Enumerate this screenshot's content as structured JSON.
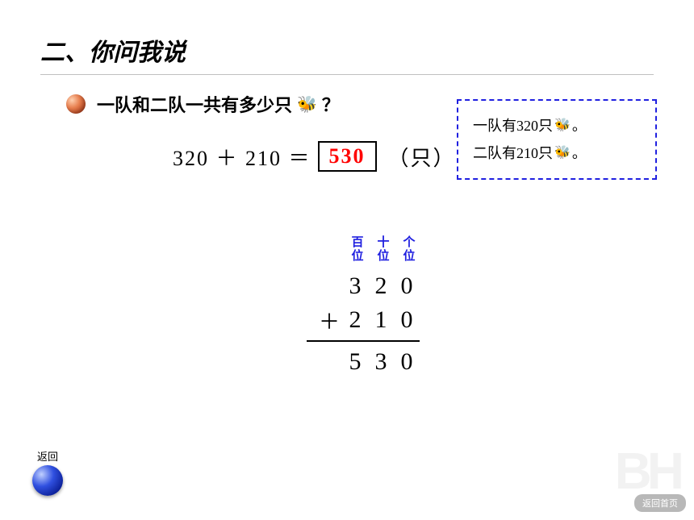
{
  "title": "二、你问我说",
  "question": {
    "prefix": "一队和二队一共有多少只",
    "suffix": "？"
  },
  "equation": {
    "lhs": "320 ＋ 210 ＝",
    "answer": "530",
    "answer_color": "#ff0000",
    "unit": "（只）"
  },
  "info_box": {
    "border_color": "#2020e0",
    "line1_prefix": "一队有320只",
    "line1_suffix": "。",
    "line2_prefix": "二队有210只",
    "line2_suffix": "。"
  },
  "vertical": {
    "place_label_color": "#2020e0",
    "places": [
      "百位",
      "十位",
      "个位"
    ],
    "row1": [
      "3",
      "2",
      "0"
    ],
    "row2": [
      "2",
      "1",
      "0"
    ],
    "op": "＋",
    "result": [
      "5",
      "3",
      "0"
    ]
  },
  "back": {
    "label": "返回"
  },
  "home": {
    "label": "返回首页"
  },
  "watermark": "BH",
  "colors": {
    "background": "#ffffff",
    "title_underline": "#c0c0c0",
    "answer_box_border": "#000000"
  }
}
